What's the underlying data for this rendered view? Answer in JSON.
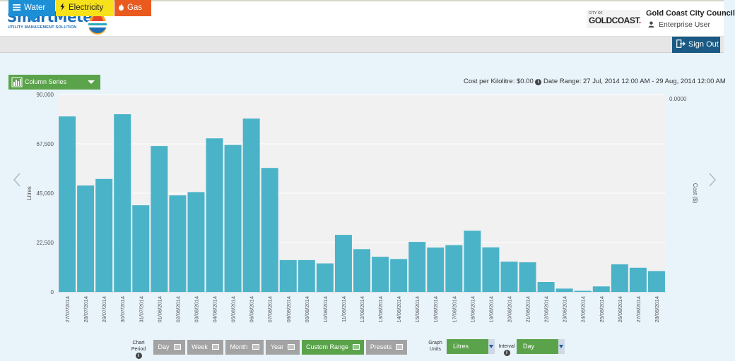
{
  "brand": {
    "name": "SmartMeter",
    "tagline": "UTILITY MANAGEMENT SOLUTION"
  },
  "council": {
    "logo_small": "CITY OF",
    "logo_main": "GOLDCOAST",
    "logo_dot": ".",
    "name": "Gold Coast City Council",
    "user_role": "Enterprise User"
  },
  "tabs": [
    {
      "label": "Water",
      "icon": "menu-icon",
      "color": "#1c8fd6",
      "active": true
    },
    {
      "label": "Electricity",
      "icon": "lightning-icon",
      "color": "#f7e11a",
      "active": false
    },
    {
      "label": "Gas",
      "icon": "flame-icon",
      "color": "#e85a1e",
      "active": false
    }
  ],
  "signout_label": "Sign Out",
  "series_select": {
    "label": "Column Series"
  },
  "cost_info": {
    "cost_text": "Cost per Kilolitre: $0.00",
    "info_glyph": "i",
    "range_text": "Date Range: 27 Jul, 2014 12:00 AM - 29 Aug, 2014 12:00 AM"
  },
  "chart_data": {
    "type": "bar",
    "ylabel": "Litres",
    "y2label": "Cost ($)",
    "ylim": [
      0,
      90000
    ],
    "yticks": [
      0,
      22500,
      45000,
      67500,
      90000
    ],
    "ytick_labels": [
      "0",
      "22,500",
      "45,000",
      "67,500",
      "90,000"
    ],
    "y2_tick_label": "0.0000",
    "bar_color": "#4ab3c8",
    "categories": [
      "27/07/2014",
      "28/07/2014",
      "29/07/2014",
      "30/07/2014",
      "31/07/2014",
      "01/08/2014",
      "02/08/2014",
      "03/08/2014",
      "04/08/2014",
      "05/08/2014",
      "06/08/2014",
      "07/08/2014",
      "08/08/2014",
      "09/08/2014",
      "10/08/2014",
      "11/08/2014",
      "12/08/2014",
      "13/08/2014",
      "14/08/2014",
      "15/08/2014",
      "16/08/2014",
      "17/08/2014",
      "18/08/2014",
      "19/08/2014",
      "20/08/2014",
      "21/08/2014",
      "22/08/2014",
      "23/08/2014",
      "24/08/2014",
      "25/08/2014",
      "26/08/2014",
      "27/08/2014",
      "28/08/2014"
    ],
    "values": [
      80000,
      48500,
      51500,
      81000,
      39500,
      66500,
      44000,
      45500,
      70000,
      67000,
      79000,
      56500,
      14500,
      14500,
      13000,
      26000,
      19500,
      16000,
      15000,
      22800,
      20200,
      21300,
      27900,
      20300,
      13800,
      13500,
      4500,
      1500,
      500,
      2500,
      12600,
      11000,
      9500
    ]
  },
  "controls": {
    "chart_period_label": "Chart Period",
    "info_glyph": "i",
    "periods": [
      {
        "label": "Day",
        "active": false
      },
      {
        "label": "Week",
        "active": false
      },
      {
        "label": "Month",
        "active": false
      },
      {
        "label": "Year",
        "active": false
      },
      {
        "label": "Custom Range",
        "active": true
      },
      {
        "label": "Presets",
        "active": false
      }
    ],
    "graph_units_label": "Graph Units",
    "graph_units_value": "Litres",
    "interval_label": "Interval",
    "interval_value": "Day"
  }
}
